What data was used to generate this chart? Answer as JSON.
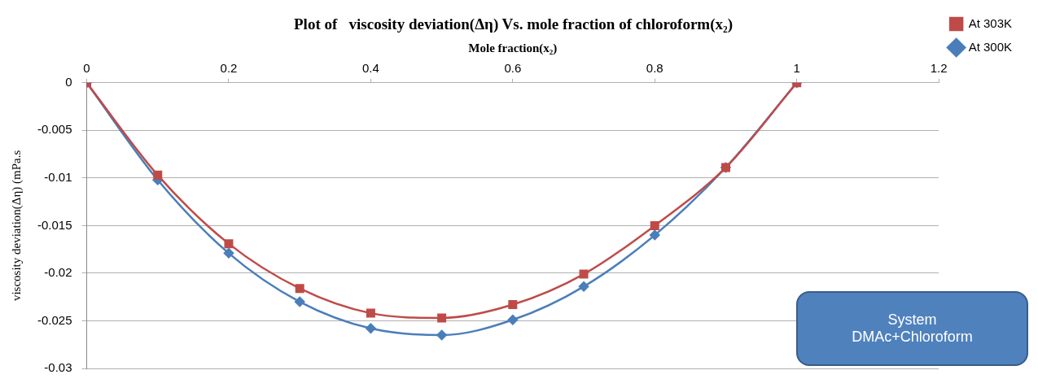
{
  "chart_data": {
    "type": "line",
    "title": "Plot of   viscosity deviation(Δη) Vs. mole fraction of chloroform(x₂)",
    "xlabel": "Mole fraction(x₂)",
    "ylabel": "viscosity deviation(Δη) (mPa.s",
    "x": [
      0,
      0.1,
      0.2,
      0.3,
      0.4,
      0.5,
      0.6,
      0.7,
      0.8,
      0.9,
      1
    ],
    "series": [
      {
        "name": "At 300K",
        "color": "#4a7ebb",
        "marker": "diamond",
        "values": [
          0,
          -0.0102,
          -0.0179,
          -0.023,
          -0.0258,
          -0.0265,
          -0.0249,
          -0.0214,
          -0.016,
          -0.0089,
          0
        ]
      },
      {
        "name": "At 303K",
        "color": "#be4b48",
        "marker": "square",
        "values": [
          0,
          -0.0097,
          -0.0169,
          -0.0216,
          -0.0242,
          -0.0247,
          -0.0233,
          -0.0201,
          -0.015,
          -0.0089,
          0
        ]
      }
    ],
    "xlim": [
      0,
      1.2
    ],
    "xticks": [
      0,
      0.2,
      0.4,
      0.6,
      0.8,
      1,
      1.2
    ],
    "ylim": [
      -0.03,
      0
    ],
    "yticks": [
      -0.03,
      -0.025,
      -0.02,
      -0.015,
      -0.01,
      -0.005,
      0
    ],
    "grid": "y",
    "legend": "right",
    "annotations": [
      "System\nDMAc+Chloroform"
    ]
  }
}
